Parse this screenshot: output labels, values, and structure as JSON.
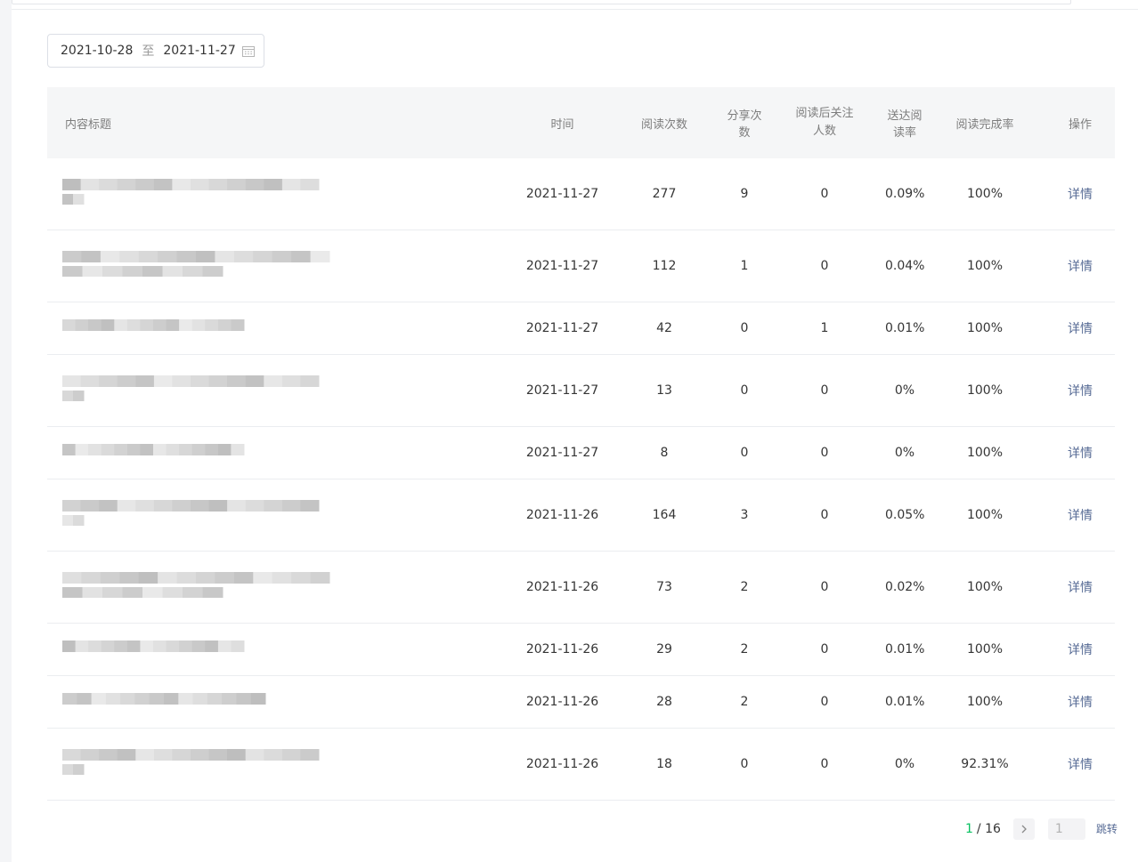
{
  "date_range": {
    "start": "2021-10-28",
    "separator": "至",
    "end": "2021-11-27",
    "icon": "calendar-icon"
  },
  "table": {
    "columns": {
      "title": "内容标题",
      "time": "时间",
      "read_count": "阅读次数",
      "share_count": "分享次数",
      "follow_after_read_line1": "阅读后关注",
      "follow_after_read_line2": "人数",
      "delivery_read_rate": "送达阅读率",
      "read_complete_rate": "阅读完成率",
      "action": "操作"
    },
    "rows": [
      {
        "time": "2021-11-27",
        "read": "277",
        "share": "9",
        "follow": "0",
        "rate": "0.09%",
        "complete": "100%",
        "action": "详情"
      },
      {
        "time": "2021-11-27",
        "read": "112",
        "share": "1",
        "follow": "0",
        "rate": "0.04%",
        "complete": "100%",
        "action": "详情"
      },
      {
        "time": "2021-11-27",
        "read": "42",
        "share": "0",
        "follow": "1",
        "rate": "0.01%",
        "complete": "100%",
        "action": "详情"
      },
      {
        "time": "2021-11-27",
        "read": "13",
        "share": "0",
        "follow": "0",
        "rate": "0%",
        "complete": "100%",
        "action": "详情"
      },
      {
        "time": "2021-11-27",
        "read": "8",
        "share": "0",
        "follow": "0",
        "rate": "0%",
        "complete": "100%",
        "action": "详情"
      },
      {
        "time": "2021-11-26",
        "read": "164",
        "share": "3",
        "follow": "0",
        "rate": "0.05%",
        "complete": "100%",
        "action": "详情"
      },
      {
        "time": "2021-11-26",
        "read": "73",
        "share": "2",
        "follow": "0",
        "rate": "0.02%",
        "complete": "100%",
        "action": "详情"
      },
      {
        "time": "2021-11-26",
        "read": "29",
        "share": "2",
        "follow": "0",
        "rate": "0.01%",
        "complete": "100%",
        "action": "详情"
      },
      {
        "time": "2021-11-26",
        "read": "28",
        "share": "2",
        "follow": "0",
        "rate": "0.01%",
        "complete": "100%",
        "action": "详情"
      },
      {
        "time": "2021-11-26",
        "read": "18",
        "share": "0",
        "follow": "0",
        "rate": "0%",
        "complete": "92.31%",
        "action": "详情"
      }
    ]
  },
  "pagination": {
    "current": "1",
    "separator": "/",
    "total": "16",
    "input_value": "1",
    "jump_label": "跳转",
    "next_icon": "chevron-right-icon"
  }
}
